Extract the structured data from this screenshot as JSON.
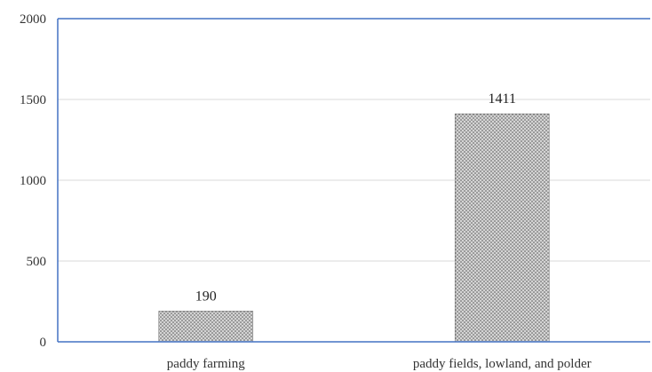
{
  "chart_data": {
    "type": "bar",
    "categories": [
      "paddy farming",
      "paddy fields, lowland, and polder"
    ],
    "values": [
      190,
      1411
    ],
    "data_labels": [
      "190",
      "1411"
    ],
    "ylim": [
      0,
      2000
    ],
    "yticks": [
      0,
      500,
      1000,
      1500,
      2000
    ],
    "ytick_labels": [
      "0",
      "500",
      "1000",
      "1500",
      "2000"
    ],
    "grid": true,
    "legend": "none",
    "title": "",
    "xlabel": "",
    "ylabel": "",
    "colors": {
      "bar_base": "#d4d4d4",
      "bar_dots": "#4d4d4d",
      "bar_edge": "#7a7a7a",
      "axis": "#4472c4",
      "grid": "#d9d9d9"
    }
  }
}
